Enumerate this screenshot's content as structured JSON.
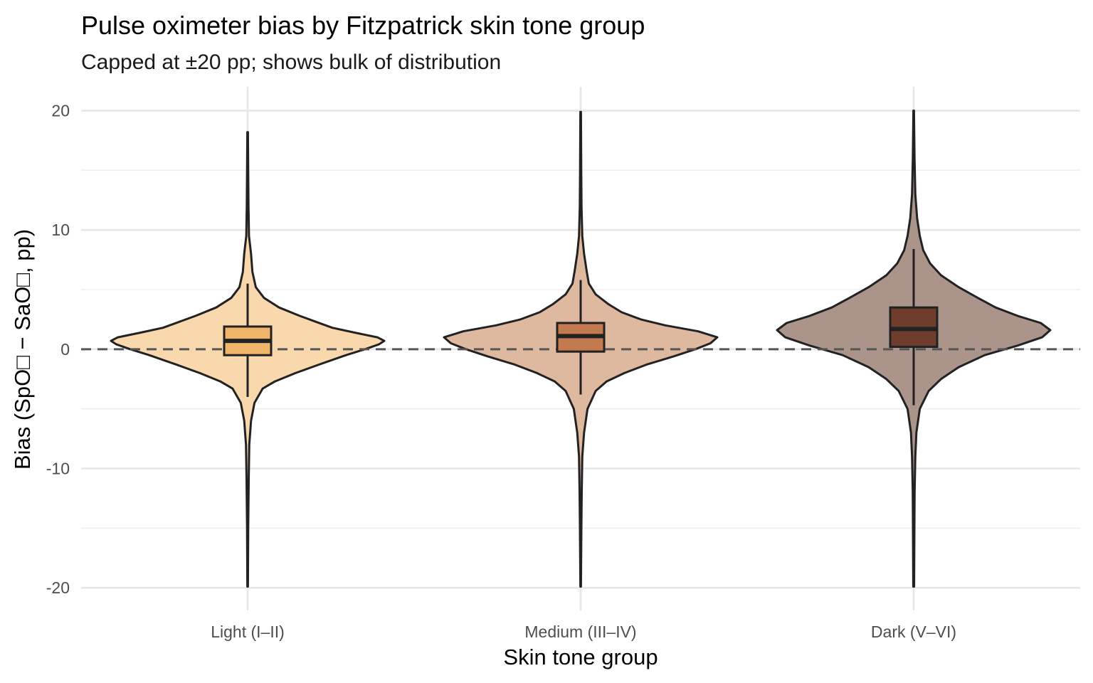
{
  "chart_data": {
    "type": "violin",
    "title": "Pulse oximeter bias by Fitzpatrick skin tone group",
    "subtitle": "Capped at ±20 pp; shows bulk of distribution",
    "xlabel": "Skin tone group",
    "ylabel": "Bias (SpO□ − SaO□, pp)",
    "ylim": [
      -21.9,
      22
    ],
    "yticks": [
      -20,
      -10,
      0,
      10,
      20
    ],
    "reference_line": {
      "y": 0,
      "style": "dashed"
    },
    "grid": true,
    "legend": "none",
    "categories": [
      "Light (I–II)",
      "Medium (III–IV)",
      "Dark (V–VI)"
    ],
    "series": [
      {
        "category": "Light (I–II)",
        "violin_fill": "#f9d8ae",
        "box_fill": "#f0b56a",
        "range": [
          -19.9,
          18.2
        ],
        "box": {
          "whisker_low": -4.0,
          "q1": -0.5,
          "median": 0.7,
          "q3": 1.9,
          "whisker_high": 5.5
        },
        "density": [
          [
            -19.9,
            0.002
          ],
          [
            -15,
            0.004
          ],
          [
            -11,
            0.008
          ],
          [
            -8,
            0.012
          ],
          [
            -6,
            0.025
          ],
          [
            -4.5,
            0.05
          ],
          [
            -3.3,
            0.11
          ],
          [
            -2.7,
            0.2
          ],
          [
            -2.0,
            0.35
          ],
          [
            -1.3,
            0.52
          ],
          [
            -0.5,
            0.72
          ],
          [
            0,
            0.86
          ],
          [
            0.4,
            0.96
          ],
          [
            0.7,
            1.0
          ],
          [
            1.0,
            0.95
          ],
          [
            1.4,
            0.78
          ],
          [
            1.8,
            0.62
          ],
          [
            2.3,
            0.5
          ],
          [
            2.8,
            0.38
          ],
          [
            3.5,
            0.23
          ],
          [
            4.3,
            0.12
          ],
          [
            5.2,
            0.06
          ],
          [
            6.5,
            0.035
          ],
          [
            8,
            0.025
          ],
          [
            9.5,
            0.01
          ],
          [
            12,
            0.006
          ],
          [
            15,
            0.004
          ],
          [
            18.2,
            0.002
          ]
        ]
      },
      {
        "category": "Medium (III–IV)",
        "violin_fill": "#dfb8a0",
        "box_fill": "#c47a4f",
        "range": [
          -19.9,
          19.9
        ],
        "box": {
          "whisker_low": -3.8,
          "q1": -0.2,
          "median": 1.1,
          "q3": 2.2,
          "whisker_high": 5.8
        },
        "density": [
          [
            -19.9,
            0.002
          ],
          [
            -15,
            0.005
          ],
          [
            -12,
            0.008
          ],
          [
            -9,
            0.012
          ],
          [
            -7,
            0.025
          ],
          [
            -5,
            0.05
          ],
          [
            -3.5,
            0.11
          ],
          [
            -2.7,
            0.19
          ],
          [
            -2.0,
            0.32
          ],
          [
            -1.3,
            0.48
          ],
          [
            -0.6,
            0.68
          ],
          [
            0,
            0.84
          ],
          [
            0.5,
            0.95
          ],
          [
            1.0,
            1.0
          ],
          [
            1.5,
            0.86
          ],
          [
            2.0,
            0.62
          ],
          [
            2.5,
            0.44
          ],
          [
            3.1,
            0.3
          ],
          [
            3.8,
            0.2
          ],
          [
            4.6,
            0.11
          ],
          [
            5.5,
            0.06
          ],
          [
            6.5,
            0.045
          ],
          [
            8,
            0.025
          ],
          [
            9.5,
            0.012
          ],
          [
            12,
            0.006
          ],
          [
            15,
            0.004
          ],
          [
            19.9,
            0.002
          ]
        ]
      },
      {
        "category": "Dark (V–VI)",
        "violin_fill": "#ab948a",
        "box_fill": "#6e3d2c",
        "range": [
          -19.9,
          20.0
        ],
        "box": {
          "whisker_low": -4.7,
          "q1": 0.2,
          "median": 1.7,
          "q3": 3.5,
          "whisker_high": 8.4
        },
        "density": [
          [
            -19.9,
            0.003
          ],
          [
            -15,
            0.005
          ],
          [
            -12,
            0.007
          ],
          [
            -9,
            0.012
          ],
          [
            -7,
            0.02
          ],
          [
            -5,
            0.045
          ],
          [
            -3.5,
            0.11
          ],
          [
            -2.5,
            0.2
          ],
          [
            -1.5,
            0.33
          ],
          [
            -0.5,
            0.52
          ],
          [
            0.3,
            0.76
          ],
          [
            1.0,
            0.94
          ],
          [
            1.6,
            1.0
          ],
          [
            2.2,
            0.93
          ],
          [
            2.8,
            0.76
          ],
          [
            3.5,
            0.6
          ],
          [
            4.3,
            0.47
          ],
          [
            5.2,
            0.33
          ],
          [
            6.2,
            0.2
          ],
          [
            7.2,
            0.12
          ],
          [
            8.3,
            0.07
          ],
          [
            9.5,
            0.045
          ],
          [
            11,
            0.025
          ],
          [
            13,
            0.012
          ],
          [
            16,
            0.006
          ],
          [
            20.0,
            0.002
          ]
        ]
      }
    ]
  }
}
